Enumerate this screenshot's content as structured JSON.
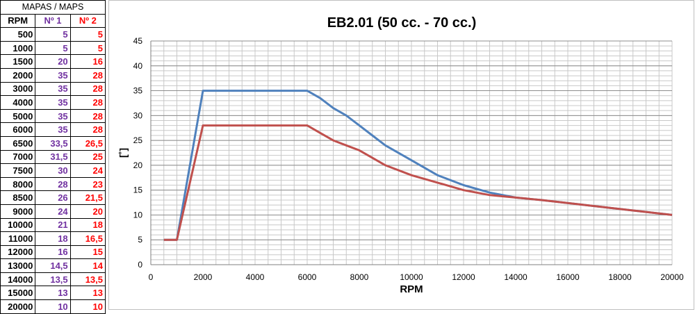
{
  "table": {
    "title": "MAPAS / MAPS",
    "headers": [
      "RPM",
      "Nº 1",
      "Nº 2"
    ],
    "rows": [
      [
        "500",
        "5",
        "5"
      ],
      [
        "1000",
        "5",
        "5"
      ],
      [
        "1500",
        "20",
        "16"
      ],
      [
        "2000",
        "35",
        "28"
      ],
      [
        "3000",
        "35",
        "28"
      ],
      [
        "4000",
        "35",
        "28"
      ],
      [
        "5000",
        "35",
        "28"
      ],
      [
        "6000",
        "35",
        "28"
      ],
      [
        "6500",
        "33,5",
        "26,5"
      ],
      [
        "7000",
        "31,5",
        "25"
      ],
      [
        "7500",
        "30",
        "24"
      ],
      [
        "8000",
        "28",
        "23"
      ],
      [
        "8500",
        "26",
        "21,5"
      ],
      [
        "9000",
        "24",
        "20"
      ],
      [
        "10000",
        "21",
        "18"
      ],
      [
        "11000",
        "18",
        "16,5"
      ],
      [
        "12000",
        "16",
        "15"
      ],
      [
        "13000",
        "14,5",
        "14"
      ],
      [
        "14000",
        "13,5",
        "13,5"
      ],
      [
        "15000",
        "13",
        "13"
      ],
      [
        "20000",
        "10",
        "10"
      ]
    ]
  },
  "chart_data": {
    "type": "line",
    "title": "EB2.01 (50 cc. - 70 cc.)",
    "xlabel": "RPM",
    "ylabel": "[˚]",
    "xlim": [
      0,
      20000
    ],
    "ylim": [
      0,
      45
    ],
    "x_ticks": [
      0,
      2000,
      4000,
      6000,
      8000,
      10000,
      12000,
      14000,
      16000,
      18000,
      20000
    ],
    "y_ticks": [
      0,
      5,
      10,
      15,
      20,
      25,
      30,
      35,
      40,
      45
    ],
    "grid": true,
    "legend": "none",
    "x": [
      500,
      1000,
      2000,
      3000,
      4000,
      5000,
      6000,
      6500,
      7000,
      7500,
      8000,
      8500,
      9000,
      10000,
      11000,
      12000,
      13000,
      14000,
      15000,
      20000
    ],
    "series": [
      {
        "color": "#4f81bd",
        "values": [
          5,
          5,
          35,
          35,
          35,
          35,
          35,
          33.5,
          31.5,
          30,
          28,
          26,
          24,
          21,
          18,
          16,
          14.5,
          13.5,
          13,
          10
        ]
      },
      {
        "color": "#c0504d",
        "values": [
          5,
          5,
          28,
          28,
          28,
          28,
          28,
          26.5,
          25,
          24,
          23,
          21.5,
          20,
          18,
          16.5,
          15,
          14,
          13.5,
          13,
          10
        ]
      }
    ]
  }
}
